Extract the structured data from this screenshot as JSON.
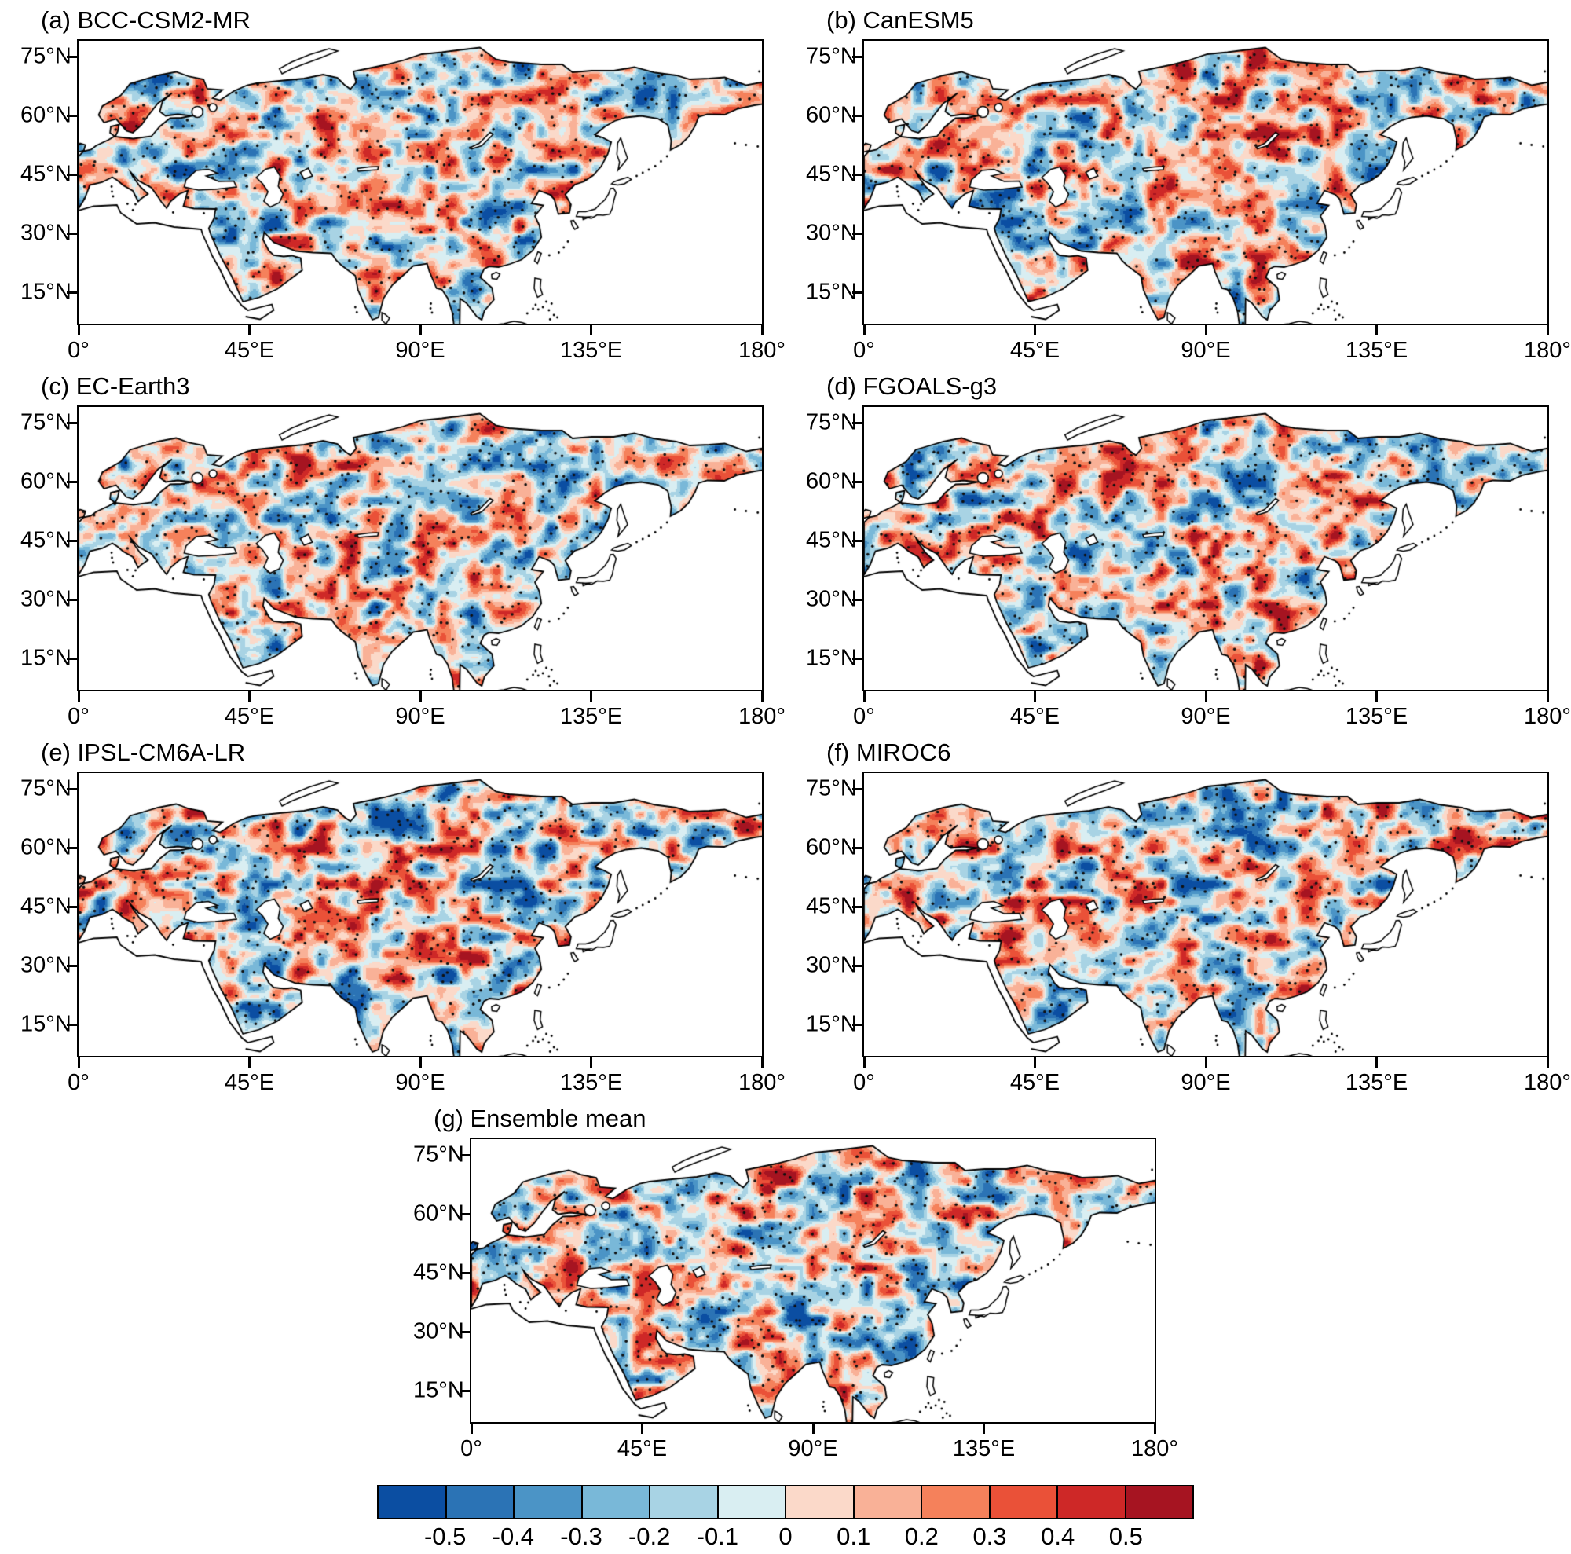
{
  "panels": [
    {
      "id": "a",
      "title": "(a) BCC-CSM2-MR",
      "seed": 101
    },
    {
      "id": "b",
      "title": "(b) CanESM5",
      "seed": 202
    },
    {
      "id": "c",
      "title": "(c) EC-Earth3",
      "seed": 303
    },
    {
      "id": "d",
      "title": "(d) FGOALS-g3",
      "seed": 404
    },
    {
      "id": "e",
      "title": "(e) IPSL-CM6A-LR",
      "seed": 505
    },
    {
      "id": "f",
      "title": "(f) MIROC6",
      "seed": 606
    },
    {
      "id": "g",
      "title": "(g) Ensemble mean",
      "seed": 707
    }
  ],
  "axes": {
    "yticks": [
      "75°N",
      "60°N",
      "45°N",
      "30°N",
      "15°N"
    ],
    "yvalues": [
      75,
      60,
      45,
      30,
      15
    ],
    "xticks": [
      "0°",
      "45°E",
      "90°E",
      "135°E",
      "180°"
    ],
    "xvalues": [
      0,
      45,
      90,
      135,
      180
    ],
    "lon_range": [
      0,
      180
    ],
    "lat_range": [
      7,
      79
    ]
  },
  "colorbar": {
    "labels": [
      "-0.5",
      "-0.4",
      "-0.3",
      "-0.2",
      "-0.1",
      "0",
      "0.1",
      "0.2",
      "0.3",
      "0.4",
      "0.5"
    ],
    "values": [
      -0.5,
      -0.4,
      -0.3,
      -0.2,
      -0.1,
      0,
      0.1,
      0.2,
      0.3,
      0.4,
      0.5
    ],
    "colors": [
      "#0b4ea2",
      "#2b73b5",
      "#4b94c6",
      "#79b8d8",
      "#a8d3e4",
      "#d9eef2",
      "#fbd9c9",
      "#f9b197",
      "#f5815b",
      "#ea5138",
      "#ce2827",
      "#a61421"
    ]
  },
  "chart_data": {
    "type": "heatmap",
    "layout": "7-panel geographic map figure: 2 columns x 3 rows plus one centered bottom panel, shared colorbar at bottom",
    "panels": [
      "(a) BCC-CSM2-MR",
      "(b) CanESM5",
      "(c) EC-Earth3",
      "(d) FGOALS-g3",
      "(e) IPSL-CM6A-LR",
      "(f) MIROC6",
      "(g) Ensemble mean"
    ],
    "region": {
      "lon_deg_e": [
        0,
        180
      ],
      "lat_deg_n": [
        7,
        79
      ]
    },
    "x_tick_values": [
      0,
      45,
      90,
      135,
      180
    ],
    "y_tick_values": [
      15,
      30,
      45,
      60,
      75
    ],
    "colorbar_levels": [
      -0.5,
      -0.4,
      -0.3,
      -0.2,
      -0.1,
      0,
      0.1,
      0.2,
      0.3,
      0.4,
      0.5
    ],
    "colorbar_colors": [
      "#0b4ea2",
      "#2b73b5",
      "#4b94c6",
      "#79b8d8",
      "#a8d3e4",
      "#d9eef2",
      "#fbd9c9",
      "#f9b197",
      "#f5815b",
      "#ea5138",
      "#ce2827",
      "#a61421"
    ],
    "field_description": "Diverging red/blue filled-contour anomaly pattern over Eurasian land (ocean and Africa masked white), with black stippling dots marking significant regions; values roughly in [-0.5, 0.5]",
    "legend_position": "bottom horizontal colorbar"
  }
}
